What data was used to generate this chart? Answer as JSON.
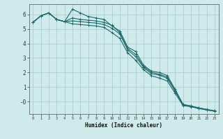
{
  "xlabel": "Humidex (Indice chaleur)",
  "xlim": [
    -0.5,
    23.5
  ],
  "ylim": [
    -0.85,
    6.7
  ],
  "bg_color": "#ceeaea",
  "grid_color": "#aacece",
  "line_color": "#1e6b6b",
  "xticks": [
    0,
    1,
    2,
    3,
    4,
    5,
    6,
    7,
    8,
    9,
    10,
    11,
    12,
    13,
    14,
    15,
    16,
    17,
    18,
    19,
    20,
    21,
    22,
    23
  ],
  "yticks": [
    0,
    1,
    2,
    3,
    4,
    5,
    6
  ],
  "ytick_labels": [
    "-0",
    "1",
    "2",
    "3",
    "4",
    "5",
    "6"
  ],
  "series": [
    [
      5.45,
      5.9,
      6.1,
      5.65,
      5.5,
      6.35,
      6.1,
      5.85,
      5.75,
      5.65,
      5.2,
      4.85,
      3.75,
      3.45,
      2.5,
      2.1,
      2.0,
      1.8,
      0.85,
      -0.18,
      -0.32,
      -0.45,
      -0.58,
      -0.65
    ],
    [
      5.45,
      5.9,
      6.1,
      5.65,
      5.5,
      5.75,
      5.65,
      5.6,
      5.55,
      5.45,
      5.25,
      4.75,
      3.65,
      3.25,
      2.42,
      2.02,
      1.88,
      1.7,
      0.78,
      -0.2,
      -0.3,
      -0.43,
      -0.55,
      -0.63
    ],
    [
      5.45,
      5.9,
      6.1,
      5.65,
      5.5,
      5.55,
      5.5,
      5.45,
      5.4,
      5.3,
      5.05,
      4.65,
      3.55,
      3.1,
      2.35,
      1.92,
      1.82,
      1.6,
      0.72,
      -0.22,
      -0.3,
      -0.43,
      -0.53,
      -0.63
    ],
    [
      5.45,
      5.9,
      6.1,
      5.65,
      5.5,
      5.35,
      5.3,
      5.25,
      5.2,
      5.1,
      4.75,
      4.35,
      3.35,
      2.85,
      2.2,
      1.78,
      1.62,
      1.42,
      0.58,
      -0.28,
      -0.35,
      -0.48,
      -0.57,
      -0.66
    ]
  ]
}
